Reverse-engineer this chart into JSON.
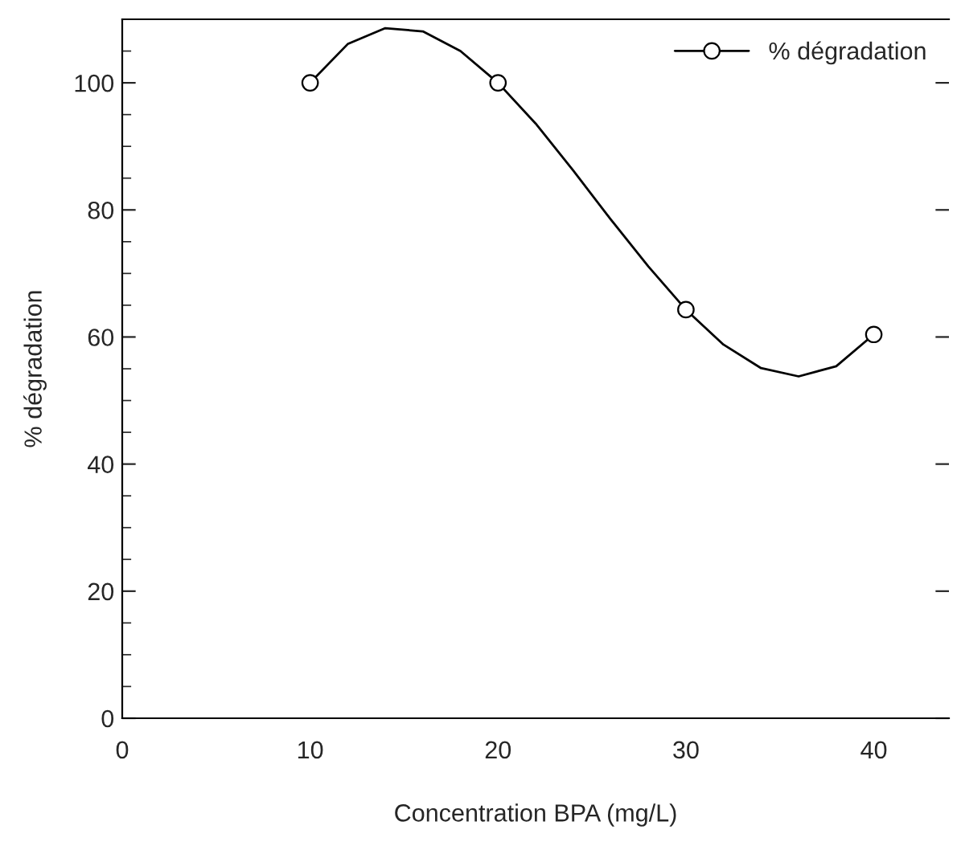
{
  "chart_data": {
    "type": "scatter",
    "xlabel": "Concentration BPA (mg/L)",
    "ylabel": "% dégradation",
    "x": [
      10,
      20,
      30,
      40
    ],
    "series": [
      {
        "type": "line",
        "marker": "none",
        "color": "#000000",
        "x": [
          10,
          12,
          14,
          16,
          18,
          20,
          22,
          24,
          26,
          28,
          30,
          32,
          34,
          36,
          38,
          40
        ],
        "values": [
          100,
          106.1,
          108.6,
          108.1,
          105.0,
          100,
          93.6,
          86.2,
          78.5,
          71.1,
          64.3,
          58.8,
          55.1,
          53.8,
          55.4,
          60.4
        ]
      },
      {
        "name": "% dégradation",
        "color": "#000000",
        "values": [
          100,
          100,
          64.3,
          60.4
        ]
      }
    ],
    "xlim": [
      0,
      44
    ],
    "ylim": [
      0,
      110
    ],
    "xticks": [
      0,
      10,
      20,
      30,
      40
    ],
    "yticks": [
      0,
      20,
      40,
      60,
      80,
      100
    ],
    "marker": "circle",
    "line_style": "solid",
    "legend": "top right"
  }
}
